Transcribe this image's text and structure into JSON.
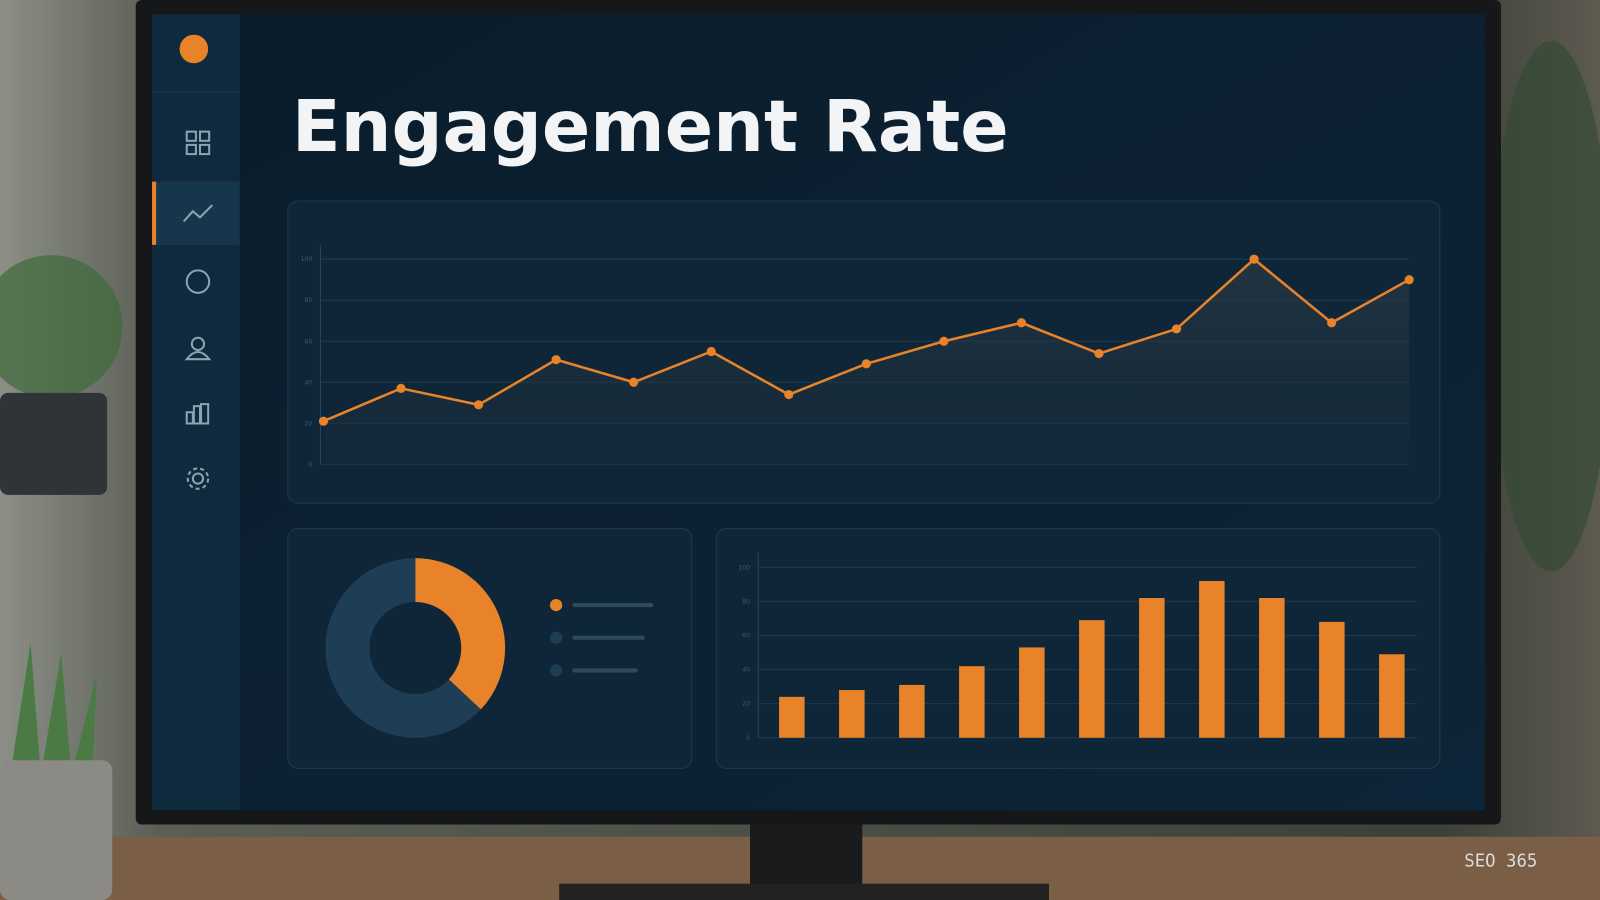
{
  "header": {
    "title": "Engagement Rate"
  },
  "chart_data": [
    {
      "type": "line",
      "color": "#e8832a",
      "values": [
        21,
        37,
        29,
        51,
        40,
        55,
        34,
        49,
        60,
        69,
        54,
        66,
        100,
        69,
        90
      ],
      "ylim": [
        0,
        100
      ],
      "yticks": [
        0,
        20,
        40,
        60,
        80,
        100
      ],
      "grid": true
    },
    {
      "type": "pie",
      "values": [
        37,
        63
      ],
      "colors": [
        "#e8832a",
        "#1d3e55"
      ]
    },
    {
      "type": "bar",
      "color": "#e8832a",
      "values": [
        24,
        28,
        31,
        42,
        53,
        69,
        82,
        92,
        82,
        68,
        49
      ],
      "ylim": [
        0,
        100
      ],
      "yticks": [
        0,
        20,
        40,
        60,
        80,
        100
      ],
      "grid": true
    }
  ],
  "watermark": "SEO 365"
}
